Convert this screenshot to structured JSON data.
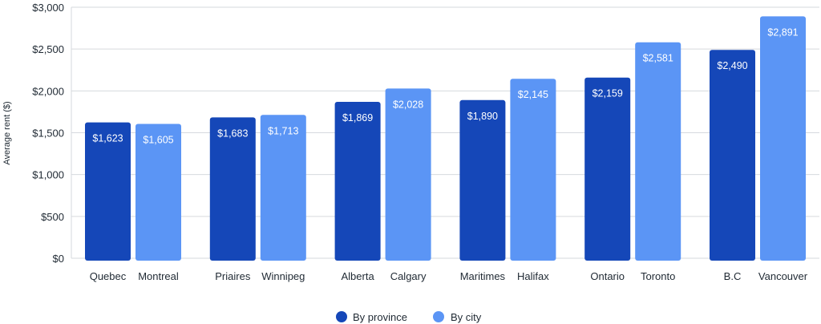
{
  "chart_data": {
    "type": "bar",
    "ylabel": "Average rent ($)",
    "ylim": [
      0,
      3000
    ],
    "yticks": [
      0,
      500,
      1000,
      1500,
      2000,
      2500,
      3000
    ],
    "ytick_labels": [
      "$0",
      "$500",
      "$1,000",
      "$1,500",
      "$2,000",
      "$2,500",
      "$3,000"
    ],
    "grid": true,
    "legend_position": "bottom-center",
    "groups": [
      {
        "province": "Quebec",
        "province_value": 1623,
        "province_label": "$1,623",
        "city": "Montreal",
        "city_value": 1605,
        "city_label": "$1,605"
      },
      {
        "province": "Priaires",
        "province_value": 1683,
        "province_label": "$1,683",
        "city": "Winnipeg",
        "city_value": 1713,
        "city_label": "$1,713"
      },
      {
        "province": "Alberta",
        "province_value": 1869,
        "province_label": "$1,869",
        "city": "Calgary",
        "city_value": 2028,
        "city_label": "$2,028"
      },
      {
        "province": "Maritimes",
        "province_value": 1890,
        "province_label": "$1,890",
        "city": "Halifax",
        "city_value": 2145,
        "city_label": "$2,145"
      },
      {
        "province": "Ontario",
        "province_value": 2159,
        "province_label": "$2,159",
        "city": "Toronto",
        "city_value": 2581,
        "city_label": "$2,581"
      },
      {
        "province": "B.C",
        "province_value": 2490,
        "province_label": "$2,490",
        "city": "Vancouver",
        "city_value": 2891,
        "city_label": "$2,891"
      }
    ],
    "series": [
      {
        "name": "By province",
        "color": "#1547b8"
      },
      {
        "name": "By city",
        "color": "#5b95f5"
      }
    ]
  }
}
